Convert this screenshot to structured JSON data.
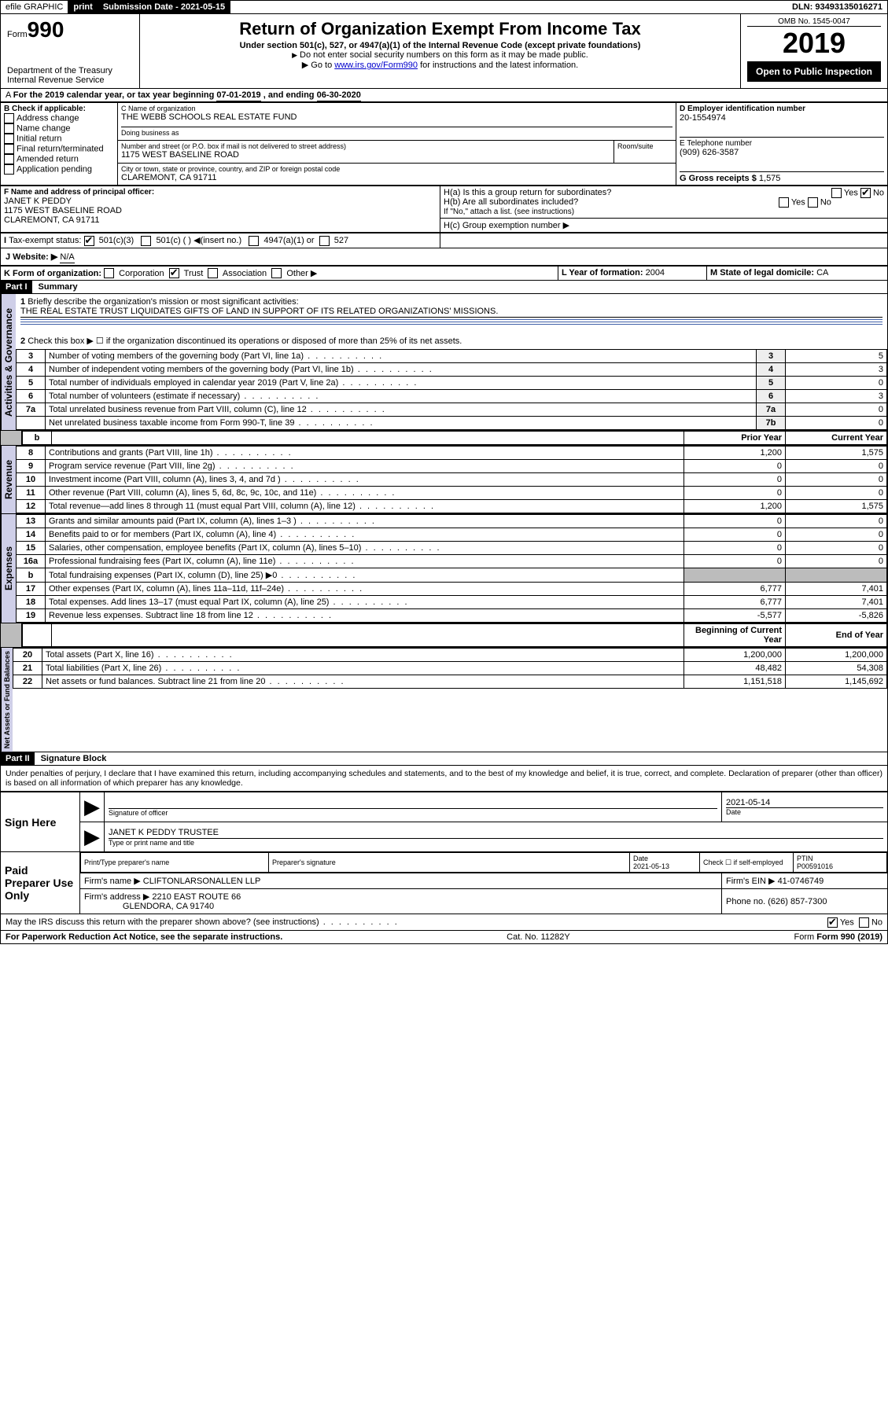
{
  "topbar": {
    "efile": "efile GRAPHIC",
    "print": "print",
    "submission_label": "Submission Date - 2021-05-15",
    "dln": "DLN: 93493135016271"
  },
  "header": {
    "form_label": "Form",
    "form_number": "990",
    "dept": "Department of the Treasury\nInternal Revenue Service",
    "title": "Return of Organization Exempt From Income Tax",
    "subtitle": "Under section 501(c), 527, or 4947(a)(1) of the Internal Revenue Code (except private foundations)",
    "note1": "Do not enter social security numbers on this form as it may be made public.",
    "note2_prefix": "Go to ",
    "note2_link": "www.irs.gov/Form990",
    "note2_suffix": " for instructions and the latest information.",
    "omb": "OMB No. 1545-0047",
    "year": "2019",
    "open": "Open to Public Inspection"
  },
  "period": {
    "label": "For the 2019 calendar year, or tax year beginning ",
    "begin": "07-01-2019",
    "mid": " , and ending ",
    "end": "06-30-2020"
  },
  "boxB": {
    "label": "B Check if applicable:",
    "items": [
      "Address change",
      "Name change",
      "Initial return",
      "Final return/terminated",
      "Amended return",
      "Application pending"
    ]
  },
  "boxC": {
    "label": "C Name of organization",
    "org": "THE WEBB SCHOOLS REAL ESTATE FUND",
    "dba_label": "Doing business as",
    "addr_label": "Number and street (or P.O. box if mail is not delivered to street address)",
    "room_label": "Room/suite",
    "addr": "1175 WEST BASELINE ROAD",
    "city_label": "City or town, state or province, country, and ZIP or foreign postal code",
    "city": "CLAREMONT, CA  91711"
  },
  "boxD": {
    "label": "D Employer identification number",
    "ein": "20-1554974"
  },
  "boxE": {
    "label": "E Telephone number",
    "phone": "(909) 626-3587"
  },
  "boxG": {
    "label": "G Gross receipts $",
    "val": "1,575"
  },
  "boxF": {
    "label": "F  Name and address of principal officer:",
    "name": "JANET K PEDDY",
    "addr1": "1175 WEST BASELINE ROAD",
    "addr2": "CLAREMONT, CA  91711"
  },
  "boxH": {
    "ha": "H(a)  Is this a group return for subordinates?",
    "hb": "H(b)  Are all subordinates included?",
    "hb_note": "If \"No,\" attach a list. (see instructions)",
    "hc": "H(c)  Group exemption number ▶",
    "yes": "Yes",
    "no": "No"
  },
  "taxexempt": {
    "label": "Tax-exempt status:",
    "c3": "501(c)(3)",
    "c": "501(c) (   ) ◀(insert no.)",
    "a1": "4947(a)(1) or",
    "s527": "527"
  },
  "boxJ": {
    "label": "J   Website: ▶",
    "val": "N/A"
  },
  "boxK": {
    "label": "K Form of organization:",
    "corp": "Corporation",
    "trust": "Trust",
    "assoc": "Association",
    "other": "Other ▶"
  },
  "boxL": {
    "label": "L Year of formation:",
    "val": "2004"
  },
  "boxM": {
    "label": "M State of legal domicile:",
    "val": "CA"
  },
  "part1": {
    "label": "Part I",
    "title": "Summary"
  },
  "summary": {
    "line1_label": "Briefly describe the organization's mission or most significant activities:",
    "line1_text": "THE REAL ESTATE TRUST LIQUIDATES GIFTS OF LAND IN SUPPORT OF ITS RELATED ORGANIZATIONS' MISSIONS.",
    "line2": "Check this box ▶ ☐  if the organization discontinued its operations or disposed of more than 25% of its net assets."
  },
  "gov_rows": [
    {
      "n": "3",
      "desc": "Number of voting members of the governing body (Part VI, line 1a)",
      "r": "3",
      "v": "5"
    },
    {
      "n": "4",
      "desc": "Number of independent voting members of the governing body (Part VI, line 1b)",
      "r": "4",
      "v": "3"
    },
    {
      "n": "5",
      "desc": "Total number of individuals employed in calendar year 2019 (Part V, line 2a)",
      "r": "5",
      "v": "0"
    },
    {
      "n": "6",
      "desc": "Total number of volunteers (estimate if necessary)",
      "r": "6",
      "v": "3"
    },
    {
      "n": "7a",
      "desc": "Total unrelated business revenue from Part VIII, column (C), line 12",
      "r": "7a",
      "v": "0"
    },
    {
      "n": "",
      "desc": "Net unrelated business taxable income from Form 990-T, line 39",
      "r": "7b",
      "v": "0"
    }
  ],
  "col_headers": {
    "b": "b",
    "prior": "Prior Year",
    "current": "Current Year"
  },
  "rev_rows": [
    {
      "n": "8",
      "desc": "Contributions and grants (Part VIII, line 1h)",
      "p": "1,200",
      "c": "1,575"
    },
    {
      "n": "9",
      "desc": "Program service revenue (Part VIII, line 2g)",
      "p": "0",
      "c": "0"
    },
    {
      "n": "10",
      "desc": "Investment income (Part VIII, column (A), lines 3, 4, and 7d )",
      "p": "0",
      "c": "0"
    },
    {
      "n": "11",
      "desc": "Other revenue (Part VIII, column (A), lines 5, 6d, 8c, 9c, 10c, and 11e)",
      "p": "0",
      "c": "0"
    },
    {
      "n": "12",
      "desc": "Total revenue—add lines 8 through 11 (must equal Part VIII, column (A), line 12)",
      "p": "1,200",
      "c": "1,575"
    }
  ],
  "exp_rows": [
    {
      "n": "13",
      "desc": "Grants and similar amounts paid (Part IX, column (A), lines 1–3 )",
      "p": "0",
      "c": "0"
    },
    {
      "n": "14",
      "desc": "Benefits paid to or for members (Part IX, column (A), line 4)",
      "p": "0",
      "c": "0"
    },
    {
      "n": "15",
      "desc": "Salaries, other compensation, employee benefits (Part IX, column (A), lines 5–10)",
      "p": "0",
      "c": "0"
    },
    {
      "n": "16a",
      "desc": "Professional fundraising fees (Part IX, column (A), line 11e)",
      "p": "0",
      "c": "0"
    },
    {
      "n": "b",
      "desc": "Total fundraising expenses (Part IX, column (D), line 25) ▶0",
      "p": "shade",
      "c": "shade"
    },
    {
      "n": "17",
      "desc": "Other expenses (Part IX, column (A), lines 11a–11d, 11f–24e)",
      "p": "6,777",
      "c": "7,401"
    },
    {
      "n": "18",
      "desc": "Total expenses. Add lines 13–17 (must equal Part IX, column (A), line 25)",
      "p": "6,777",
      "c": "7,401"
    },
    {
      "n": "19",
      "desc": "Revenue less expenses. Subtract line 18 from line 12",
      "p": "-5,577",
      "c": "-5,826"
    }
  ],
  "net_headers": {
    "begin": "Beginning of Current Year",
    "end": "End of Year"
  },
  "net_rows": [
    {
      "n": "20",
      "desc": "Total assets (Part X, line 16)",
      "p": "1,200,000",
      "c": "1,200,000"
    },
    {
      "n": "21",
      "desc": "Total liabilities (Part X, line 26)",
      "p": "48,482",
      "c": "54,308"
    },
    {
      "n": "22",
      "desc": "Net assets or fund balances. Subtract line 21 from line 20",
      "p": "1,151,518",
      "c": "1,145,692"
    }
  ],
  "vlabels": {
    "gov": "Activities & Governance",
    "rev": "Revenue",
    "exp": "Expenses",
    "net": "Net Assets or Fund Balances"
  },
  "part2": {
    "label": "Part II",
    "title": "Signature Block"
  },
  "sig": {
    "perjury": "Under penalties of perjury, I declare that I have examined this return, including accompanying schedules and statements, and to the best of my knowledge and belief, it is true, correct, and complete. Declaration of preparer (other than officer) is based on all information of which preparer has any knowledge.",
    "sign_here": "Sign Here",
    "sig_officer": "Signature of officer",
    "sig_date": "2021-05-14",
    "date_label": "Date",
    "officer_name": "JANET K PEDDY TRUSTEE",
    "type_name": "Type or print name and title",
    "paid": "Paid Preparer Use Only",
    "prep_name_label": "Print/Type preparer's name",
    "prep_sig_label": "Preparer's signature",
    "prep_date_label": "Date",
    "prep_date": "2021-05-13",
    "self_emp": "Check ☐ if self-employed",
    "ptin_label": "PTIN",
    "ptin": "P00591016",
    "firm_name_label": "Firm's name   ▶",
    "firm_name": "CLIFTONLARSONALLEN LLP",
    "firm_ein_label": "Firm's EIN ▶",
    "firm_ein": "41-0746749",
    "firm_addr_label": "Firm's address ▶",
    "firm_addr1": "2210 EAST ROUTE 66",
    "firm_addr2": "GLENDORA, CA  91740",
    "firm_phone_label": "Phone no.",
    "firm_phone": "(626) 857-7300",
    "discuss": "May the IRS discuss this return with the preparer shown above? (see instructions)",
    "yes": "Yes",
    "no": "No"
  },
  "footer": {
    "pra": "For Paperwork Reduction Act Notice, see the separate instructions.",
    "cat": "Cat. No. 11282Y",
    "form": "Form 990 (2019)"
  },
  "colors": {
    "vlabel_bg": "#cfcfe8",
    "shade": "#bcbcbc"
  }
}
